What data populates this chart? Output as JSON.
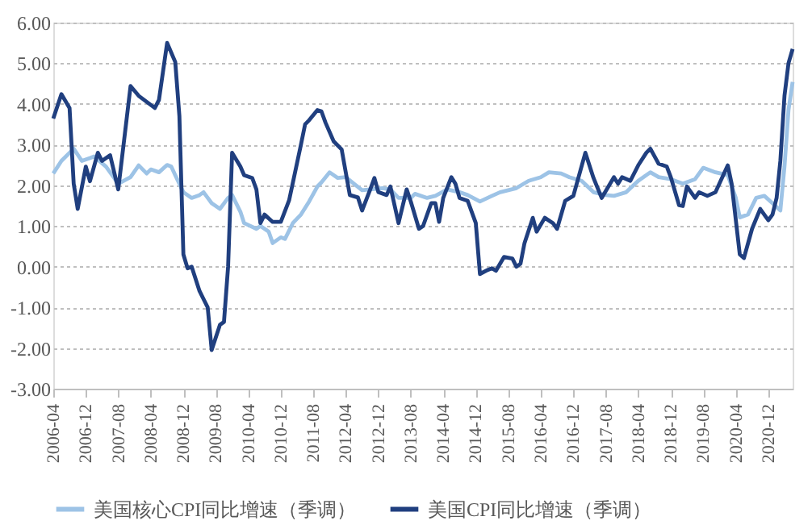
{
  "chart_data": {
    "type": "line",
    "xlim": [
      "2006-04",
      "2021-06"
    ],
    "xticks": [
      "2006-04",
      "2006-12",
      "2007-08",
      "2008-04",
      "2008-12",
      "2009-08",
      "2010-04",
      "2010-12",
      "2011-08",
      "2012-04",
      "2012-12",
      "2013-08",
      "2014-04",
      "2014-12",
      "2015-08",
      "2016-04",
      "2016-12",
      "2017-08",
      "2018-04",
      "2018-12",
      "2019-08",
      "2020-04",
      "2020-12"
    ],
    "ylim": [
      -3,
      6
    ],
    "yticks": [
      {
        "value": -3,
        "label": "-3.00"
      },
      {
        "value": -2,
        "label": "-2.00"
      },
      {
        "value": -1,
        "label": "-1.00"
      },
      {
        "value": 0,
        "label": "0.00"
      },
      {
        "value": 1,
        "label": "1.00"
      },
      {
        "value": 2,
        "label": "2.00"
      },
      {
        "value": 3,
        "label": "3.00"
      },
      {
        "value": 4,
        "label": "4.00"
      },
      {
        "value": 5,
        "label": "5.00"
      },
      {
        "value": 6,
        "label": "6.00"
      }
    ],
    "grid": "y",
    "legend": "bottom",
    "marker": "none",
    "line_style": "solid",
    "series": [
      {
        "name": "美国核心CPI同比增速（季调）",
        "color": "#9dc3e6",
        "x": [
          "2006-04",
          "2006-06",
          "2006-09",
          "2006-11",
          "2007-01",
          "2007-02",
          "2007-05",
          "2007-07",
          "2007-08",
          "2007-11",
          "2008-01",
          "2008-03",
          "2008-04",
          "2008-06",
          "2008-08",
          "2008-09",
          "2008-10",
          "2008-12",
          "2009-02",
          "2009-04",
          "2009-05",
          "2009-07",
          "2009-09",
          "2009-11",
          "2009-12",
          "2010-02",
          "2010-03",
          "2010-06",
          "2010-07",
          "2010-09",
          "2010-10",
          "2010-12",
          "2011-01",
          "2011-03",
          "2011-05",
          "2011-07",
          "2011-09",
          "2011-10",
          "2011-12",
          "2012-02",
          "2012-04",
          "2012-06",
          "2012-08",
          "2012-10",
          "2013-01",
          "2013-03",
          "2013-05",
          "2013-08",
          "2013-09",
          "2013-12",
          "2014-02",
          "2014-05",
          "2014-08",
          "2014-10",
          "2015-01",
          "2015-04",
          "2015-06",
          "2015-10",
          "2016-01",
          "2016-04",
          "2016-06",
          "2016-09",
          "2016-11",
          "2017-02",
          "2017-05",
          "2017-08",
          "2017-10",
          "2018-01",
          "2018-04",
          "2018-07",
          "2018-09",
          "2018-12",
          "2019-03",
          "2019-06",
          "2019-08",
          "2019-11",
          "2020-02",
          "2020-04",
          "2020-05",
          "2020-07",
          "2020-09",
          "2020-11",
          "2021-01",
          "2021-03",
          "2021-04",
          "2021-05",
          "2021-06"
        ],
        "values": [
          2.29,
          2.6,
          2.9,
          2.6,
          2.67,
          2.71,
          2.46,
          2.18,
          2.04,
          2.2,
          2.49,
          2.29,
          2.39,
          2.32,
          2.5,
          2.46,
          2.25,
          1.83,
          1.69,
          1.76,
          1.83,
          1.56,
          1.42,
          1.69,
          1.76,
          1.35,
          1.07,
          0.93,
          1.0,
          0.86,
          0.58,
          0.72,
          0.68,
          1.07,
          1.28,
          1.6,
          1.97,
          2.07,
          2.32,
          2.18,
          2.2,
          2.04,
          1.88,
          1.9,
          1.93,
          1.9,
          1.69,
          1.69,
          1.79,
          1.69,
          1.74,
          1.9,
          1.83,
          1.76,
          1.6,
          1.74,
          1.83,
          1.93,
          2.11,
          2.2,
          2.32,
          2.29,
          2.2,
          2.11,
          1.83,
          1.76,
          1.74,
          1.83,
          2.11,
          2.32,
          2.2,
          2.15,
          2.04,
          2.15,
          2.43,
          2.32,
          2.25,
          1.69,
          1.21,
          1.28,
          1.69,
          1.74,
          1.56,
          1.38,
          2.46,
          3.85,
          4.54
        ]
      },
      {
        "name": "美国CPI同比增速（季调）",
        "color": "#203f7f",
        "x": [
          "2006-04",
          "2006-06",
          "2006-08",
          "2006-09",
          "2006-10",
          "2006-12",
          "2007-01",
          "2007-03",
          "2007-04",
          "2007-06",
          "2007-08",
          "2007-11",
          "2008-01",
          "2008-05",
          "2008-06",
          "2008-08",
          "2008-10",
          "2008-11",
          "2008-12",
          "2009-01",
          "2009-02",
          "2009-04",
          "2009-06",
          "2009-07",
          "2009-09",
          "2009-10",
          "2009-11",
          "2009-12",
          "2010-02",
          "2010-03",
          "2010-05",
          "2010-06",
          "2010-07",
          "2010-08",
          "2010-10",
          "2010-12",
          "2011-02",
          "2011-05",
          "2011-06",
          "2011-07",
          "2011-09",
          "2011-10",
          "2011-11",
          "2012-01",
          "2012-03",
          "2012-05",
          "2012-07",
          "2012-08",
          "2012-10",
          "2012-11",
          "2012-12",
          "2013-02",
          "2013-03",
          "2013-05",
          "2013-07",
          "2013-08",
          "2013-10",
          "2013-11",
          "2014-01",
          "2014-02",
          "2014-03",
          "2014-04",
          "2014-06",
          "2014-07",
          "2014-08",
          "2014-10",
          "2014-12",
          "2015-01",
          "2015-03",
          "2015-04",
          "2015-05",
          "2015-07",
          "2015-09",
          "2015-10",
          "2015-11",
          "2015-12",
          "2016-02",
          "2016-03",
          "2016-05",
          "2016-07",
          "2016-08",
          "2016-10",
          "2016-12",
          "2017-03",
          "2017-05",
          "2017-07",
          "2017-10",
          "2017-11",
          "2017-12",
          "2018-02",
          "2018-04",
          "2018-06",
          "2018-07",
          "2018-09",
          "2018-11",
          "2018-12",
          "2019-02",
          "2019-03",
          "2019-04",
          "2019-06",
          "2019-07",
          "2019-09",
          "2019-11",
          "2020-02",
          "2020-03",
          "2020-05",
          "2020-06",
          "2020-08",
          "2020-10",
          "2020-12",
          "2021-01",
          "2021-02",
          "2021-03",
          "2021-04",
          "2021-05",
          "2021-06"
        ],
        "values": [
          3.64,
          4.24,
          3.9,
          2.04,
          1.42,
          2.46,
          2.1,
          2.8,
          2.6,
          2.74,
          1.9,
          4.44,
          4.2,
          3.9,
          4.1,
          5.5,
          5.03,
          3.7,
          0.3,
          -0.04,
          0,
          -0.6,
          -1.0,
          -2.05,
          -1.43,
          -1.36,
          0,
          2.8,
          2.46,
          2.25,
          2.18,
          1.9,
          1.07,
          1.28,
          1.1,
          1.1,
          1.63,
          3.0,
          3.5,
          3.6,
          3.85,
          3.82,
          3.54,
          3.08,
          2.88,
          1.76,
          1.7,
          1.38,
          1.9,
          2.18,
          1.83,
          1.76,
          1.97,
          1.07,
          1.9,
          1.6,
          0.93,
          1.0,
          1.56,
          1.56,
          1.1,
          1.69,
          2.2,
          2.04,
          1.69,
          1.62,
          1.07,
          -0.18,
          -0.08,
          -0.04,
          -0.1,
          0.24,
          0.2,
          0,
          0.07,
          0.58,
          1.2,
          0.86,
          1.2,
          1.07,
          0.93,
          1.62,
          1.74,
          2.8,
          2.18,
          1.69,
          2.2,
          2.04,
          2.2,
          2.11,
          2.49,
          2.8,
          2.9,
          2.53,
          2.46,
          2.2,
          1.51,
          1.49,
          1.97,
          1.69,
          1.83,
          1.74,
          1.83,
          2.49,
          2.04,
          0.3,
          0.21,
          0.93,
          1.42,
          1.14,
          1.28,
          1.69,
          2.6,
          4.2,
          5.0,
          5.35
        ]
      }
    ]
  }
}
